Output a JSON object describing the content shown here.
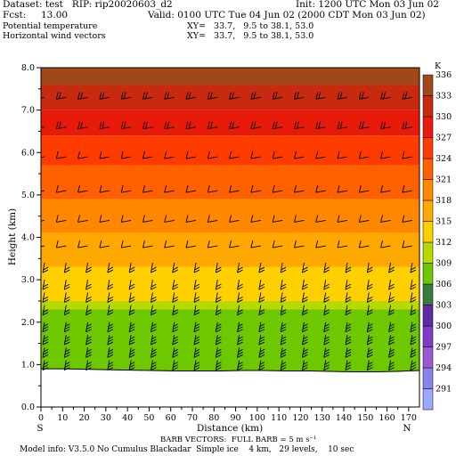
{
  "header": {
    "dataset": "Dataset: test   RIP: rip20020603_d2",
    "init": "Init: 1200 UTC Mon 03 Jun 02",
    "fcst": "Fcst:     13.00",
    "valid": "Valid: 0100 UTC Tue 04 Jun 02 (2000 CDT Mon 03 Jun 02)",
    "field1": "Potential temperature",
    "xy1": "XY=   33.7,   9.5 to 38.1, 53.0",
    "field2": "Horizontal wind vectors",
    "xy2": "XY=   33.7,   9.5 to 38.1, 53.0"
  },
  "footer": {
    "barb": "BARB VECTORS:  FULL BARB = 5 m s⁻¹",
    "model": "Model info: V3.5.0 No Cumulus Blackadar  Simple ice    4 km,   29 levels,    10 sec"
  },
  "colors": {
    "terrain": "#ffffff",
    "barbs": "#000000"
  },
  "chart_data": {
    "type": "heatmap",
    "title": "",
    "xlabel": "Distance (km)",
    "ylabel": "Height (km)",
    "xlim": [
      0,
      175
    ],
    "ylim": [
      0,
      8
    ],
    "x_ticks": [
      0,
      10,
      20,
      30,
      40,
      50,
      60,
      70,
      80,
      90,
      100,
      110,
      120,
      130,
      140,
      150,
      160,
      170
    ],
    "y_ticks": [
      0.0,
      1.0,
      2.0,
      3.0,
      4.0,
      5.0,
      6.0,
      7.0,
      8.0
    ],
    "left_end_label": "S",
    "right_end_label": "N",
    "colorbar": {
      "unit": "K",
      "labels": [
        291,
        294,
        297,
        300,
        303,
        306,
        309,
        312,
        315,
        318,
        321,
        324,
        327,
        330,
        333,
        336
      ],
      "colors": [
        "#9aa8ff",
        "#8c82ee",
        "#9a5ad2",
        "#7e3cc8",
        "#5e2aa8",
        "#3a7a3a",
        "#6ec800",
        "#b8d800",
        "#ffd000",
        "#ffa800",
        "#ff8800",
        "#ff6000",
        "#ff3c00",
        "#e81a0a",
        "#c82a10",
        "#a04818"
      ]
    },
    "terrain_height_km": [
      0.9,
      0.9,
      0.89,
      0.88,
      0.87,
      0.86,
      0.85,
      0.85,
      0.85,
      0.86,
      0.86,
      0.85,
      0.85,
      0.84,
      0.83,
      0.83,
      0.84,
      0.86
    ],
    "theta_layers": [
      {
        "top_km": 1.7,
        "theta": 309
      },
      {
        "top_km": 2.3,
        "theta": 309.5
      },
      {
        "top_km": 2.5,
        "theta": 312
      },
      {
        "top_km": 3.3,
        "theta": 315
      },
      {
        "top_km": 4.1,
        "theta": 318
      },
      {
        "top_km": 4.9,
        "theta": 321
      },
      {
        "top_km": 5.7,
        "theta": 324
      },
      {
        "top_km": 6.4,
        "theta": 327
      },
      {
        "top_km": 7.0,
        "theta": 330
      },
      {
        "top_km": 7.6,
        "theta": 333
      },
      {
        "top_km": 8.0,
        "theta": 336
      }
    ],
    "barb_x_km": [
      0,
      10,
      20,
      30,
      40,
      50,
      60,
      70,
      80,
      90,
      100,
      110,
      120,
      130,
      140,
      150,
      160,
      170
    ],
    "barb_levels_km": [
      1.1,
      1.4,
      1.7,
      2.0,
      2.4,
      2.7,
      3.0,
      3.4,
      3.8,
      4.4,
      5.1,
      5.9,
      6.6,
      7.3
    ]
  }
}
